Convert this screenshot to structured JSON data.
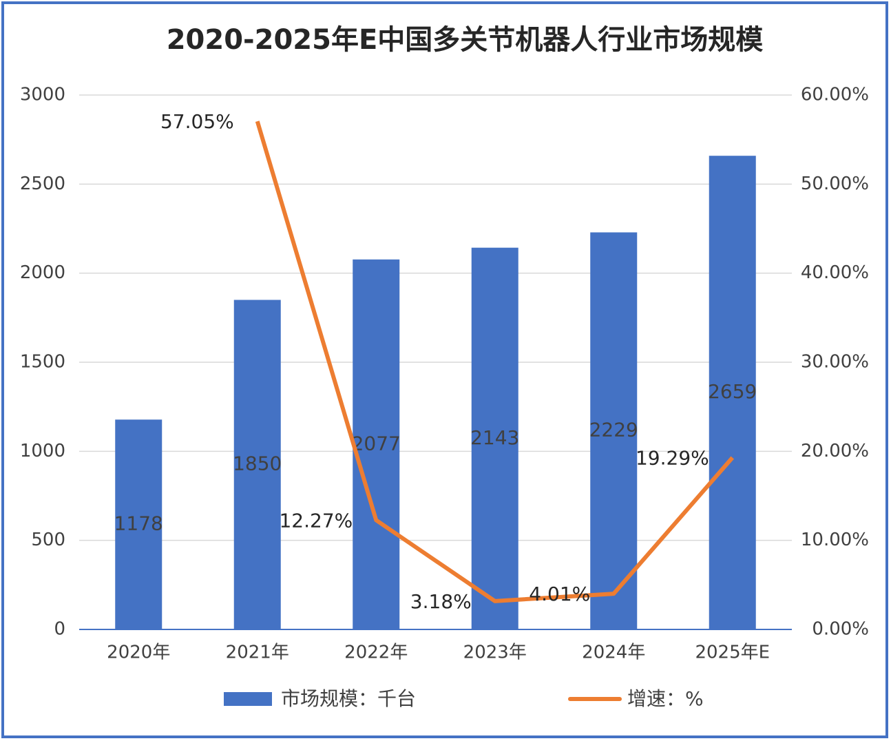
{
  "chart_data": {
    "type": "bar",
    "title": "2020-2025年E中国多关节机器人行业市场规模",
    "categories": [
      "2020年",
      "2021年",
      "2022年",
      "2023年",
      "2024年",
      "2025年E"
    ],
    "series": [
      {
        "name": "市场规模：千台",
        "color": "#4472c4",
        "type": "bar",
        "values": [
          1178,
          1850,
          2077,
          2143,
          2229,
          2659
        ]
      },
      {
        "name": "增速：%",
        "color": "#ed7d31",
        "type": "line",
        "axis": "y2",
        "values": [
          null,
          57.05,
          12.27,
          3.18,
          4.01,
          19.29
        ],
        "value_labels": [
          null,
          "57.05%",
          "12.27%",
          "3.18%",
          "4.01%",
          "19.29%"
        ]
      }
    ],
    "ylim": [
      0,
      3000
    ],
    "yticks": [
      0,
      500,
      1000,
      1500,
      2000,
      2500,
      3000
    ],
    "y2lim": [
      0,
      60
    ],
    "y2ticks": [
      {
        "value": 0,
        "label": "0.00%"
      },
      {
        "value": 10,
        "label": "10.00%"
      },
      {
        "value": 20,
        "label": "20.00%"
      },
      {
        "value": 30,
        "label": "30.00%"
      },
      {
        "value": 40,
        "label": "40.00%"
      },
      {
        "value": 50,
        "label": "50.00%"
      },
      {
        "value": 60,
        "label": "60.00%"
      }
    ],
    "grid": true,
    "legend": "bottom"
  }
}
